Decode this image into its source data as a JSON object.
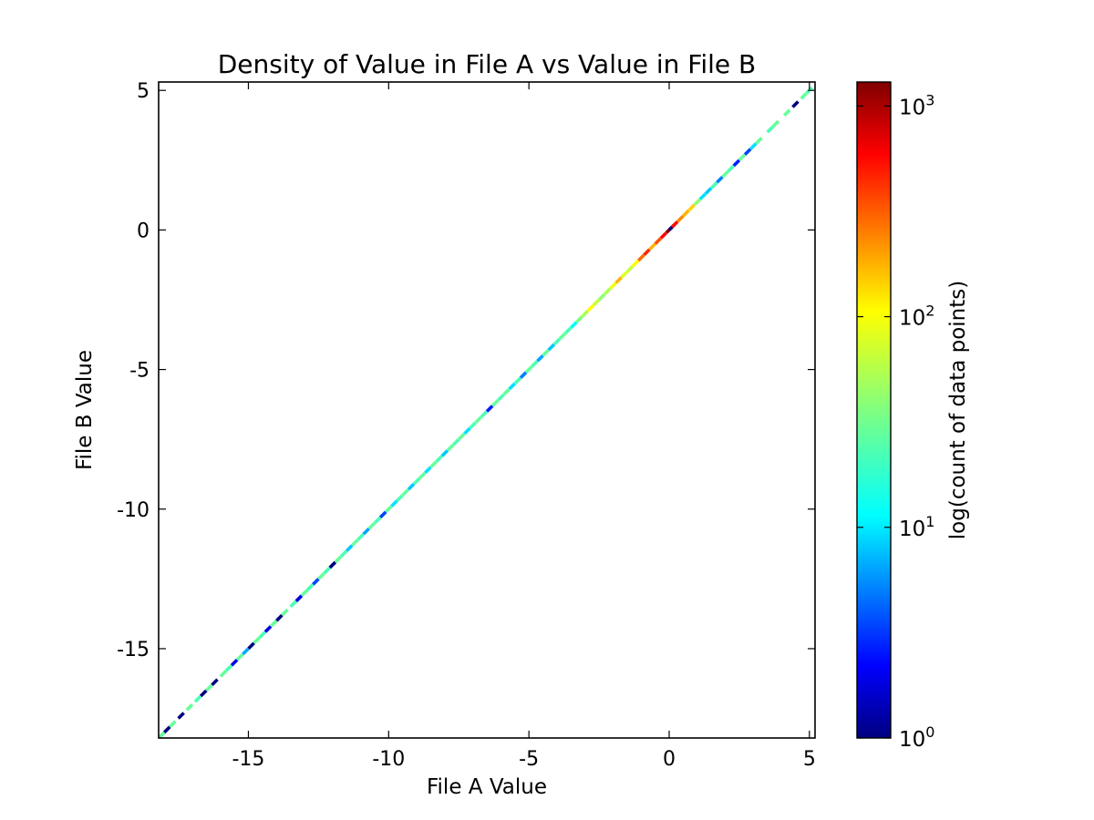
{
  "chart_data": {
    "type": "heatmap",
    "title": "Density of Value in File A vs Value in File B",
    "xlabel": "File A Value",
    "ylabel": "File B Value",
    "xlim": [
      -18.2,
      5.2
    ],
    "ylim": [
      -18.2,
      5.3
    ],
    "x_ticks": [
      -15,
      -10,
      -5,
      0,
      5
    ],
    "x_tick_labels": [
      "-15",
      "-10",
      "-5",
      "0",
      "5"
    ],
    "y_ticks": [
      5,
      0,
      -5,
      -10,
      -15
    ],
    "y_tick_labels": [
      "5",
      "0",
      "-5",
      "-10",
      "-15"
    ],
    "grid": false,
    "colormap": "jet",
    "colorbar": {
      "label": "log(count of data points)",
      "scale": "log",
      "range": [
        1,
        1300
      ],
      "ticks": [
        1,
        10,
        100,
        1000
      ],
      "tick_labels": [
        {
          "base": "10",
          "exp": "0"
        },
        {
          "base": "10",
          "exp": "1"
        },
        {
          "base": "10",
          "exp": "2"
        },
        {
          "base": "10",
          "exp": "3"
        }
      ]
    },
    "diagonal_bins": [
      {
        "x": -18.1,
        "count": 30
      },
      {
        "x": -17.9,
        "count": 1
      },
      {
        "x": -17.7,
        "count": 30
      },
      {
        "x": -17.4,
        "count": 1
      },
      {
        "x": -17.1,
        "count": 30
      },
      {
        "x": -16.8,
        "count": 25
      },
      {
        "x": -16.6,
        "count": 1
      },
      {
        "x": -16.4,
        "count": 30
      },
      {
        "x": -16.2,
        "count": 1
      },
      {
        "x": -15.9,
        "count": 30
      },
      {
        "x": -15.7,
        "count": 25
      },
      {
        "x": -15.5,
        "count": 2
      },
      {
        "x": -15.3,
        "count": 30
      },
      {
        "x": -15.1,
        "count": 8
      },
      {
        "x": -14.9,
        "count": 1
      },
      {
        "x": -14.7,
        "count": 30
      },
      {
        "x": -14.5,
        "count": 25
      },
      {
        "x": -14.3,
        "count": 2
      },
      {
        "x": -14.1,
        "count": 30
      },
      {
        "x": -13.9,
        "count": 1
      },
      {
        "x": -13.7,
        "count": 30
      },
      {
        "x": -13.4,
        "count": 25
      },
      {
        "x": -13.2,
        "count": 2
      },
      {
        "x": -13.0,
        "count": 30
      },
      {
        "x": -12.8,
        "count": 25
      },
      {
        "x": -12.6,
        "count": 4
      },
      {
        "x": -12.4,
        "count": 30
      },
      {
        "x": -12.2,
        "count": 25
      },
      {
        "x": -12.0,
        "count": 1
      },
      {
        "x": -11.8,
        "count": 30
      },
      {
        "x": -11.6,
        "count": 25
      },
      {
        "x": -11.4,
        "count": 10
      },
      {
        "x": -11.2,
        "count": 30
      },
      {
        "x": -11.0,
        "count": 25
      },
      {
        "x": -10.8,
        "count": 8
      },
      {
        "x": -10.6,
        "count": 30
      },
      {
        "x": -10.4,
        "count": 25
      },
      {
        "x": -10.2,
        "count": 4
      },
      {
        "x": -10.0,
        "count": 30
      },
      {
        "x": -9.8,
        "count": 12
      },
      {
        "x": -9.6,
        "count": 25
      },
      {
        "x": -9.4,
        "count": 30
      },
      {
        "x": -9.2,
        "count": 10
      },
      {
        "x": -9.0,
        "count": 25
      },
      {
        "x": -8.8,
        "count": 30
      },
      {
        "x": -8.6,
        "count": 12
      },
      {
        "x": -8.4,
        "count": 30
      },
      {
        "x": -8.2,
        "count": 25
      },
      {
        "x": -8.0,
        "count": 10
      },
      {
        "x": -7.8,
        "count": 30
      },
      {
        "x": -7.6,
        "count": 25
      },
      {
        "x": -7.4,
        "count": 30
      },
      {
        "x": -7.2,
        "count": 12
      },
      {
        "x": -7.0,
        "count": 25
      },
      {
        "x": -6.8,
        "count": 30
      },
      {
        "x": -6.6,
        "count": 25
      },
      {
        "x": -6.4,
        "count": 3
      },
      {
        "x": -6.2,
        "count": 30
      },
      {
        "x": -6.0,
        "count": 25
      },
      {
        "x": -5.8,
        "count": 30
      },
      {
        "x": -5.6,
        "count": 12
      },
      {
        "x": -5.4,
        "count": 25
      },
      {
        "x": -5.2,
        "count": 6
      },
      {
        "x": -5.0,
        "count": 30
      },
      {
        "x": -4.8,
        "count": 25
      },
      {
        "x": -4.6,
        "count": 8
      },
      {
        "x": -4.4,
        "count": 30
      },
      {
        "x": -4.2,
        "count": 10
      },
      {
        "x": -4.0,
        "count": 25
      },
      {
        "x": -3.8,
        "count": 30
      },
      {
        "x": -3.6,
        "count": 25
      },
      {
        "x": -3.4,
        "count": 15
      },
      {
        "x": -3.2,
        "count": 35
      },
      {
        "x": -3.0,
        "count": 50
      },
      {
        "x": -2.8,
        "count": 90
      },
      {
        "x": -2.6,
        "count": 60
      },
      {
        "x": -2.4,
        "count": 40
      },
      {
        "x": -2.2,
        "count": 50
      },
      {
        "x": -2.0,
        "count": 80
      },
      {
        "x": -1.8,
        "count": 150
      },
      {
        "x": -1.6,
        "count": 70
      },
      {
        "x": -1.4,
        "count": 60
      },
      {
        "x": -1.2,
        "count": 90
      },
      {
        "x": -1.0,
        "count": 250
      },
      {
        "x": -0.8,
        "count": 400
      },
      {
        "x": -0.6,
        "count": 150
      },
      {
        "x": -0.4,
        "count": 300
      },
      {
        "x": -0.2,
        "count": 500
      },
      {
        "x": 0.0,
        "count": 1300
      },
      {
        "x": 0.1,
        "count": 1
      },
      {
        "x": 0.2,
        "count": 500
      },
      {
        "x": 0.4,
        "count": 200
      },
      {
        "x": 0.6,
        "count": 150
      },
      {
        "x": 0.8,
        "count": 120
      },
      {
        "x": 1.0,
        "count": 40
      },
      {
        "x": 1.2,
        "count": 12
      },
      {
        "x": 1.4,
        "count": 10
      },
      {
        "x": 1.6,
        "count": 25
      },
      {
        "x": 1.8,
        "count": 6
      },
      {
        "x": 2.0,
        "count": 30
      },
      {
        "x": 2.2,
        "count": 25
      },
      {
        "x": 2.4,
        "count": 3
      },
      {
        "x": 2.6,
        "count": 30
      },
      {
        "x": 2.8,
        "count": 4
      },
      {
        "x": 3.0,
        "count": 12
      },
      {
        "x": 3.2,
        "count": 30
      },
      {
        "x": 3.6,
        "count": 25
      },
      {
        "x": 3.8,
        "count": 30
      },
      {
        "x": 4.2,
        "count": 30
      },
      {
        "x": 4.5,
        "count": 1
      },
      {
        "x": 4.8,
        "count": 30
      },
      {
        "x": 5.0,
        "count": 25
      }
    ]
  }
}
